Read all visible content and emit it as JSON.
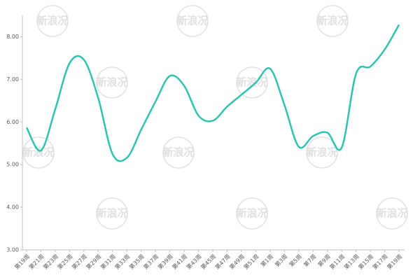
{
  "chart_data": {
    "type": "line",
    "categories": [
      "第19周",
      "第21周",
      "第23周",
      "第25周",
      "第27周",
      "第29周",
      "第31周",
      "第33周",
      "第35周",
      "第37周",
      "第39周",
      "第41周",
      "第43周",
      "第45周",
      "第47周",
      "第49周",
      "第51周",
      "第1周",
      "第3周",
      "第5周",
      "第7周",
      "第9周",
      "第11周",
      "第13周",
      "第15周",
      "第17周",
      "第19周"
    ],
    "series": [
      {
        "color": "#2ec4b0",
        "values": [
          5.87,
          5.33,
          6.3,
          7.38,
          7.46,
          6.56,
          5.25,
          5.16,
          5.82,
          6.48,
          7.08,
          6.85,
          6.15,
          6.03,
          6.36,
          6.64,
          6.92,
          7.25,
          6.4,
          5.42,
          5.67,
          5.75,
          5.4,
          7.13,
          7.3,
          7.7,
          8.28
        ]
      }
    ],
    "ylim": [
      3,
      8.5
    ],
    "yticks": [
      {
        "value": 3,
        "label": "3.00"
      },
      {
        "value": 4,
        "label": "4.00"
      },
      {
        "value": 5,
        "label": "5.00"
      },
      {
        "value": 6,
        "label": "6.00"
      },
      {
        "value": 7,
        "label": "7.00"
      },
      {
        "value": 8,
        "label": "8.00"
      }
    ],
    "grid": false,
    "watermark": "新浪况"
  }
}
